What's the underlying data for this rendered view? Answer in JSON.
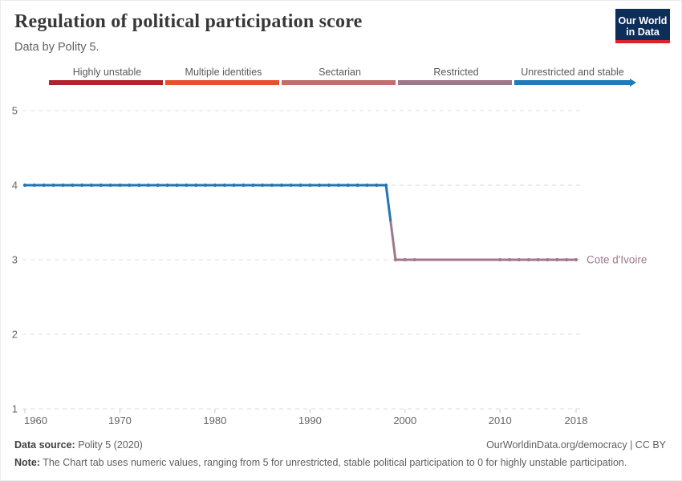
{
  "header": {
    "title": "Regulation of political participation score",
    "subtitle": "Data by Polity 5."
  },
  "logo": {
    "line1": "Our World",
    "line2": "in Data",
    "bg_color": "#0d2e58",
    "stripe_color": "#dc2328"
  },
  "chart_data": {
    "type": "line",
    "title": "Regulation of political participation score",
    "subtitle": "Data by Polity 5.",
    "entity": "Cote d'Ivoire",
    "x_range": [
      1960,
      2018
    ],
    "y_range": [
      1,
      5
    ],
    "x_ticks": [
      1960,
      1970,
      1980,
      1990,
      2000,
      2010,
      2018
    ],
    "y_ticks": [
      1,
      2,
      3,
      4,
      5
    ],
    "grid": "dashed-horizontal",
    "legend_position": "top",
    "series": [
      {
        "name": "Cote d'Ivoire",
        "runs": [
          {
            "from_year": 1960,
            "to_year": 1998,
            "value": 4,
            "category": "Unrestricted and stable",
            "color": "#2076b4"
          },
          {
            "from_year": 1999,
            "to_year": 2018,
            "value": 3,
            "category": "Restricted",
            "color": "#a0788c"
          }
        ],
        "marker_year_ranges": [
          [
            1960,
            1998
          ],
          [
            1999,
            2001
          ],
          [
            2010,
            2018
          ]
        ]
      }
    ],
    "legend": [
      {
        "label": "Highly unstable",
        "color": "#b1232e"
      },
      {
        "label": "Multiple identities",
        "color": "#e8512e"
      },
      {
        "label": "Sectarian",
        "color": "#c16e6e"
      },
      {
        "label": "Restricted",
        "color": "#a0788c"
      },
      {
        "label": "Unrestricted and stable",
        "color": "#1f7bb9",
        "arrow": true
      }
    ]
  },
  "footer": {
    "data_source_label": "Data source:",
    "data_source_value": " Polity 5 (2020)",
    "attribution": "OurWorldinData.org/democracy | CC BY",
    "note_label": "Note:",
    "note_text": " The Chart tab uses numeric values, ranging from 5 for unrestricted, stable political participation to 0 for highly unstable participation."
  }
}
